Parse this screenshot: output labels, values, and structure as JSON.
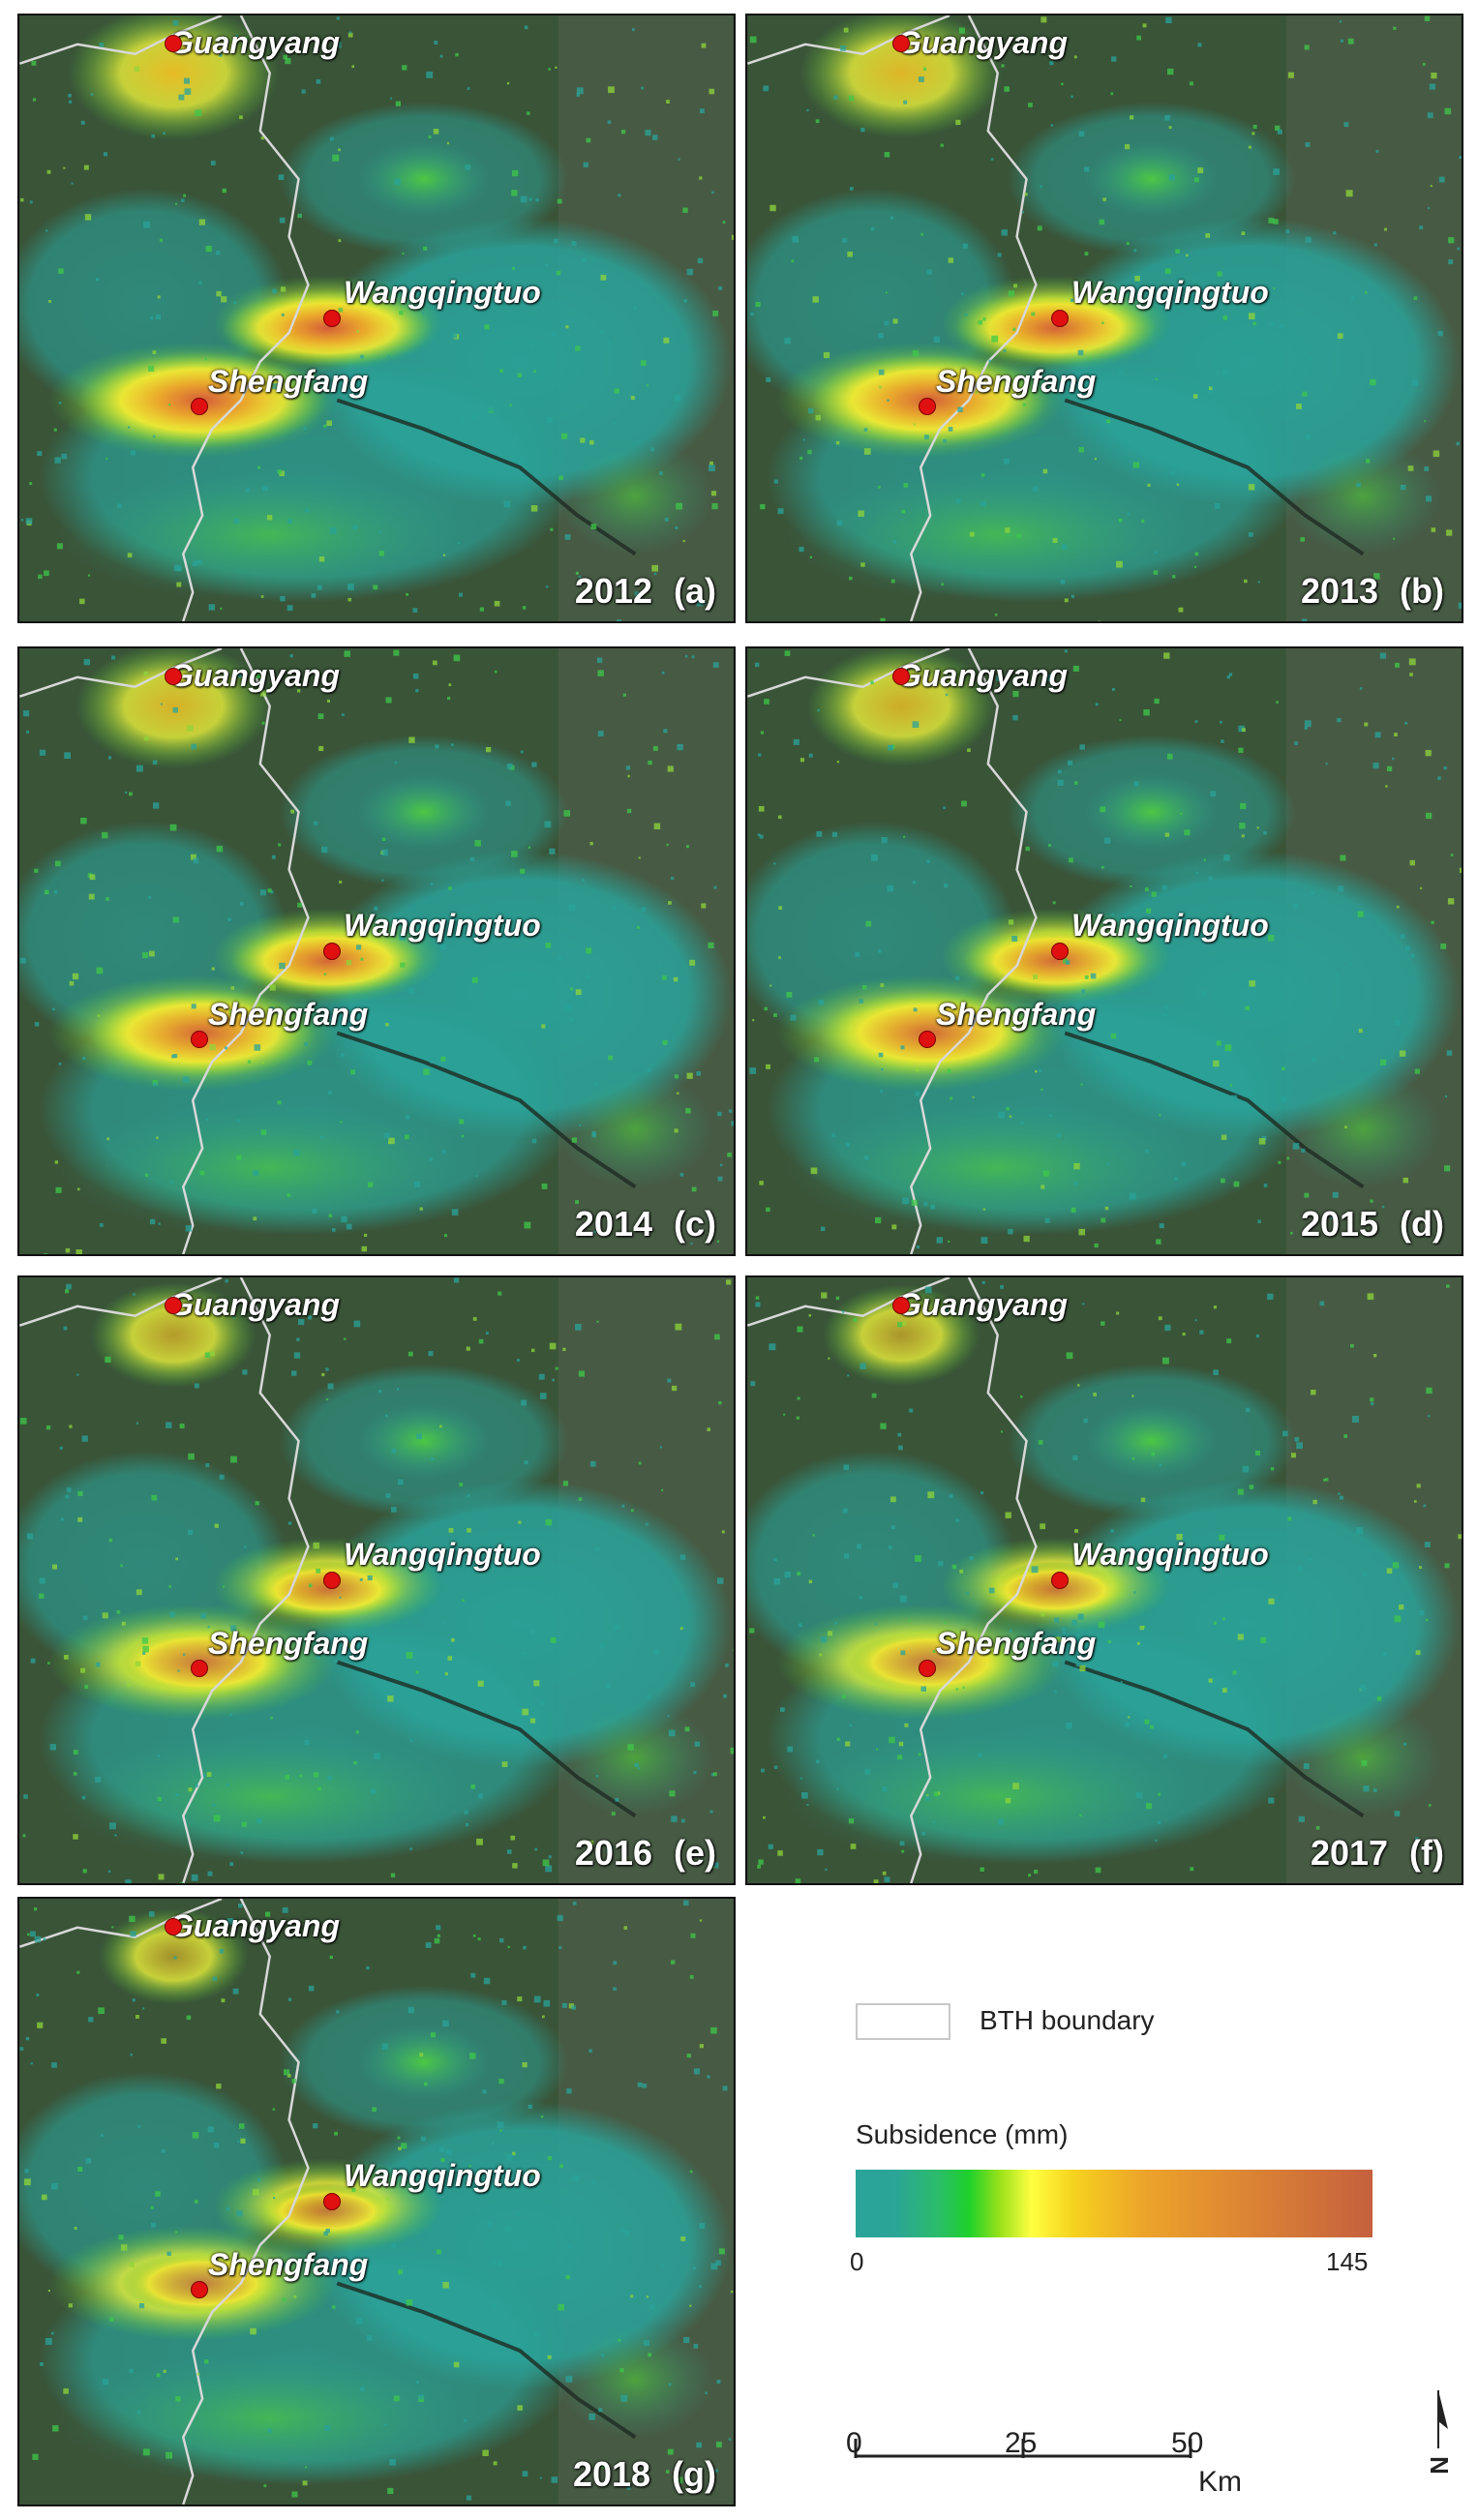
{
  "panels": [
    {
      "year": "2012",
      "letter": "(a)",
      "intensity": 1.0
    },
    {
      "year": "2013",
      "letter": "(b)",
      "intensity": 0.95
    },
    {
      "year": "2014",
      "letter": "(c)",
      "intensity": 0.9
    },
    {
      "year": "2015",
      "letter": "(d)",
      "intensity": 0.85
    },
    {
      "year": "2016",
      "letter": "(e)",
      "intensity": 0.7
    },
    {
      "year": "2017",
      "letter": "(f)",
      "intensity": 0.65
    },
    {
      "year": "2018",
      "letter": "(g)",
      "intensity": 0.6
    }
  ],
  "places": {
    "guangyang": "Guangyang",
    "wangqingtuo": "Wangqingtuo",
    "shengfang": "Shengfang"
  },
  "legend": {
    "boundary_label": "BTH  boundary",
    "title": "Subsidence (mm)",
    "min": "0",
    "max": "145",
    "scale_labels": [
      "0",
      "25",
      "50"
    ],
    "scale_unit": "Km",
    "north": "N"
  },
  "colors": {
    "low": "#2aa39a",
    "mid": "#ffff40",
    "high": "#c5603e",
    "marker": "#e01010",
    "boundary": "#d8d8d8"
  }
}
